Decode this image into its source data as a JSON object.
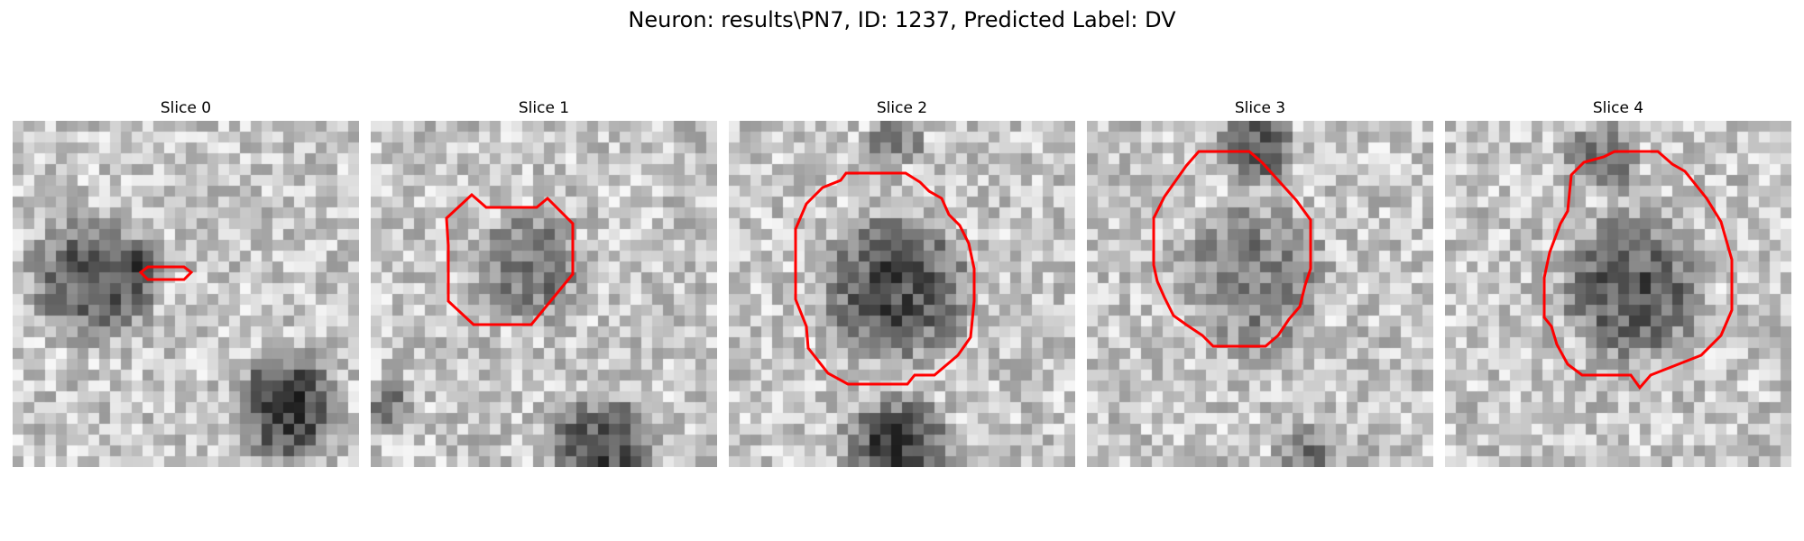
{
  "figure": {
    "title": "Neuron: results\\PN7, ID: 1237, Predicted Label: DV"
  },
  "panels": [
    {
      "title": "Slice 0",
      "contour_color": "#ff0000"
    },
    {
      "title": "Slice 1",
      "contour_color": "#ff0000"
    },
    {
      "title": "Slice 2",
      "contour_color": "#ff0000"
    },
    {
      "title": "Slice 3",
      "contour_color": "#ff0000"
    },
    {
      "title": "Slice 4",
      "contour_color": "#ff0000"
    }
  ]
}
